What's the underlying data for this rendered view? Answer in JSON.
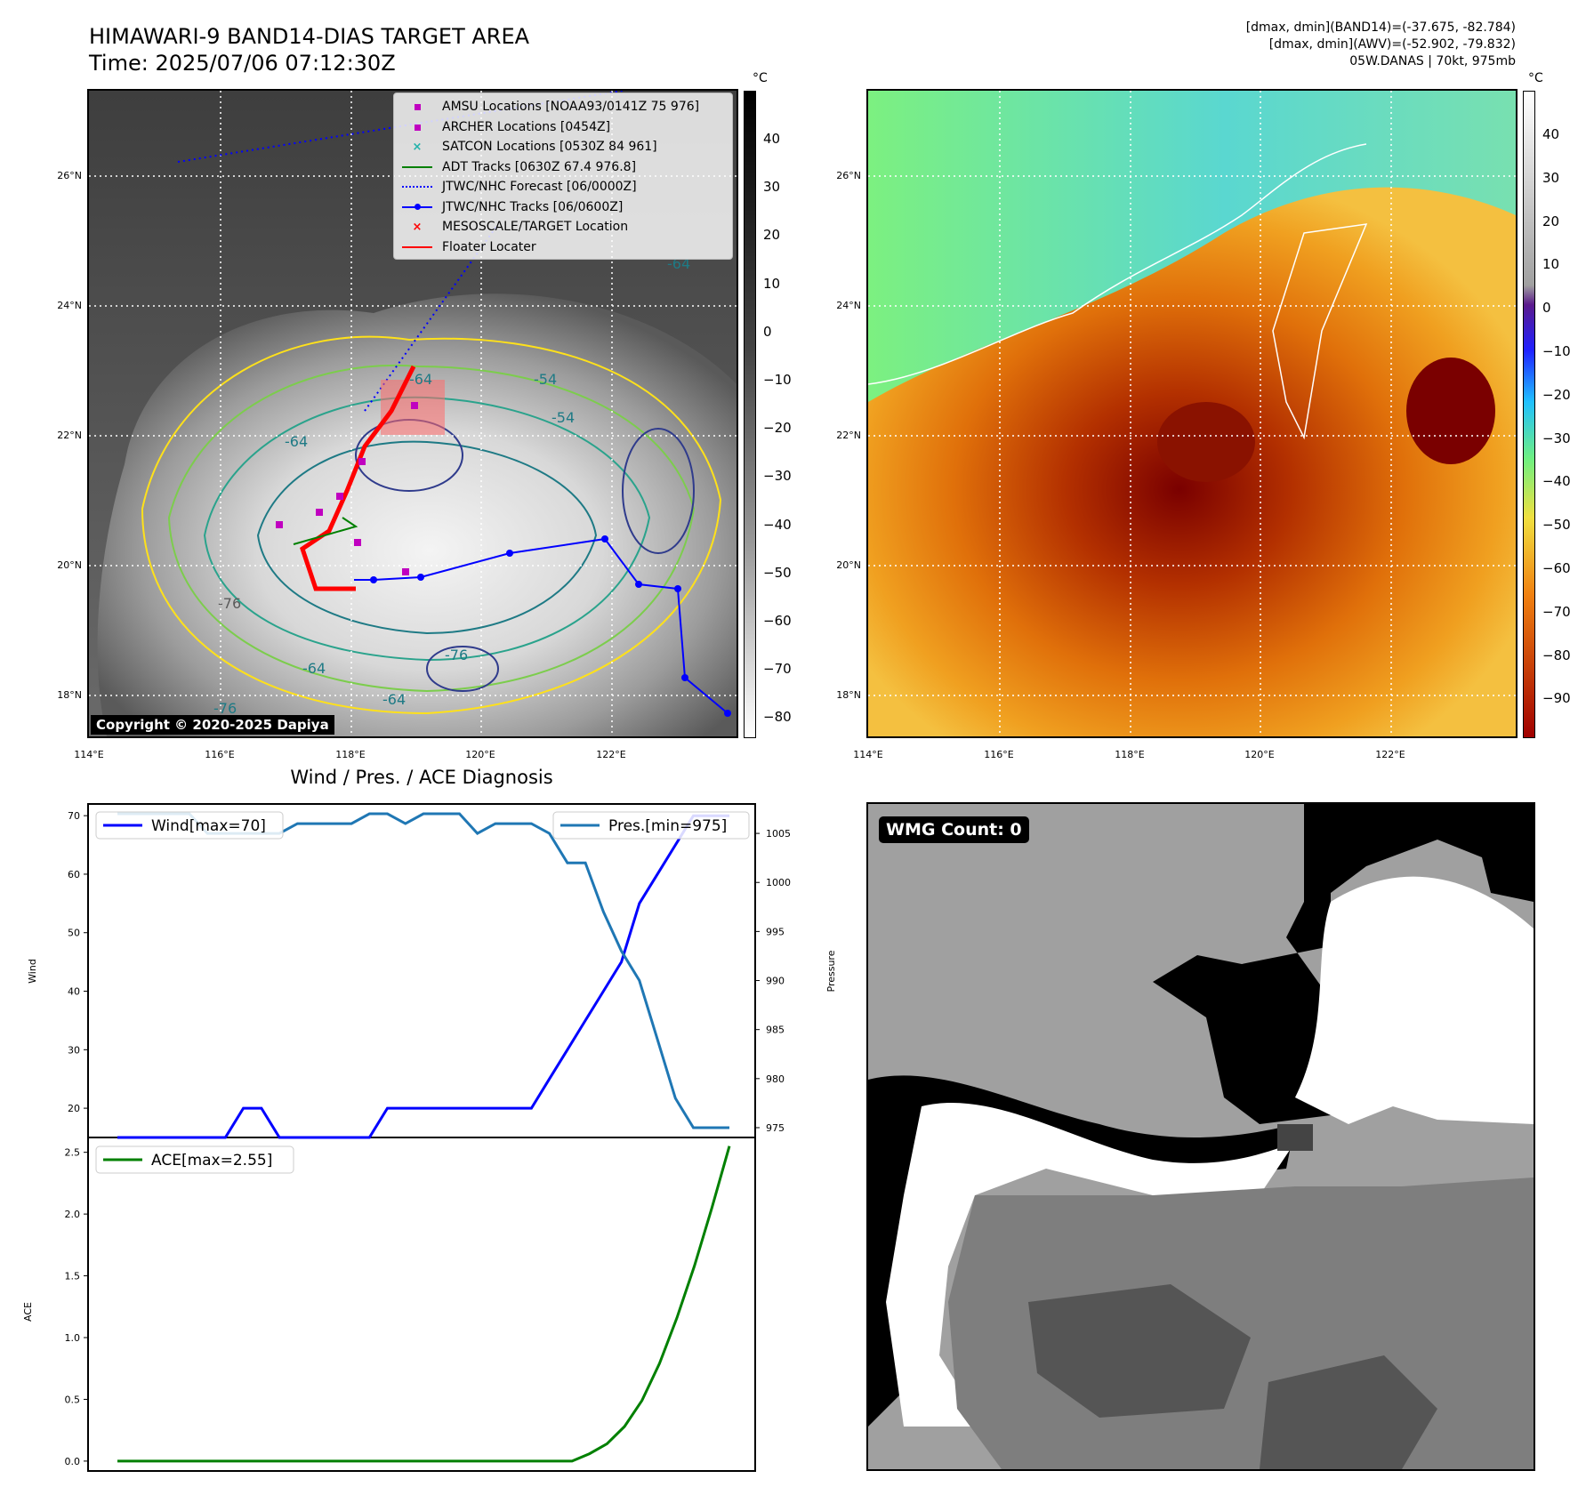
{
  "header": {
    "title": "HIMAWARI-9 BAND14-DIAS TARGET AREA",
    "time": "Time: 2025/07/06 07:12:30Z",
    "info_line1": "[dmax, dmin](BAND14)=(-37.675, -82.784)",
    "info_line2": "[dmax, dmin](AWV)=(-52.902, -79.832)",
    "info_line3": "05W.DANAS | 70kt, 975mb"
  },
  "map": {
    "lon_ticks": [
      "114°E",
      "116°E",
      "118°E",
      "120°E",
      "122°E"
    ],
    "lat_ticks": [
      "26°N",
      "24°N",
      "22°N",
      "20°N",
      "18°N"
    ],
    "copyright": "Copyright © 2020-2025 Dapiya",
    "legend": [
      {
        "label": "AMSU Locations [NOAA93/0141Z 75 976]",
        "color": "#c000c0",
        "marker": "square"
      },
      {
        "label": "ARCHER Locations [0454Z]",
        "color": "#c000c0",
        "marker": "square"
      },
      {
        "label": "SATCON Locations [0530Z 84 961]",
        "color": "#20b2aa",
        "marker": "x"
      },
      {
        "label": "ADT Tracks [0630Z 67.4 976.8]",
        "color": "#008000",
        "marker": "line"
      },
      {
        "label": "JTWC/NHC Forecast [06/0000Z]",
        "color": "#0000ff",
        "marker": "dotted"
      },
      {
        "label": "JTWC/NHC Tracks [06/0600Z]",
        "color": "#0000ff",
        "marker": "line-dot"
      },
      {
        "label": "MESOSCALE/TARGET Location",
        "color": "#ff0000",
        "marker": "x"
      },
      {
        "label": "Floater Locater",
        "color": "#ff0000",
        "marker": "line"
      }
    ],
    "gray_cbar": {
      "unit": "°C",
      "ticks": [
        "40",
        "30",
        "20",
        "10",
        "0",
        "−10",
        "−20",
        "−30",
        "−40",
        "−50",
        "−60",
        "−70",
        "−80"
      ]
    },
    "color_cbar": {
      "unit": "°C",
      "ticks": [
        "40",
        "30",
        "20",
        "10",
        "0",
        "−10",
        "−20",
        "−30",
        "−40",
        "−50",
        "−60",
        "−70",
        "−80",
        "−90"
      ]
    },
    "contour_labels": [
      "-64",
      "-76",
      "-54",
      "-64",
      "-76",
      "-64",
      "-54",
      "-64",
      "-76",
      "-64"
    ]
  },
  "chart_data": [
    {
      "type": "line",
      "title": "Wind / Pres. / ACE Diagnosis",
      "ylabel": "Wind",
      "y2label": "Pressure",
      "ylim": [
        15,
        72
      ],
      "y2lim": [
        974,
        1008
      ],
      "yticks": [
        20,
        30,
        40,
        50,
        60,
        70
      ],
      "y2ticks": [
        975,
        980,
        985,
        990,
        995,
        1000,
        1005
      ],
      "series": [
        {
          "name": "Wind[max=70]",
          "color": "#0000ff",
          "axis": "left",
          "values": [
            15,
            15,
            15,
            15,
            15,
            15,
            15,
            20,
            20,
            15,
            15,
            15,
            15,
            15,
            15,
            20,
            20,
            20,
            20,
            20,
            20,
            20,
            20,
            20,
            25,
            30,
            35,
            40,
            45,
            55,
            60,
            65,
            70,
            70,
            70
          ]
        },
        {
          "name": "Pres.[min=975]",
          "color": "#1f77b4",
          "axis": "right",
          "values": [
            1007,
            1007,
            1007,
            1007,
            1007,
            1005,
            1005,
            1005,
            1005,
            1005,
            1006,
            1006,
            1006,
            1006,
            1007,
            1007,
            1006,
            1007,
            1007,
            1007,
            1005,
            1006,
            1006,
            1006,
            1005,
            1002,
            1002,
            997,
            993,
            990,
            984,
            978,
            975,
            975,
            975
          ]
        }
      ]
    },
    {
      "type": "line",
      "ylabel": "ACE",
      "ylim": [
        -0.08,
        2.62
      ],
      "yticks": [
        0.0,
        0.5,
        1.0,
        1.5,
        2.0,
        2.5
      ],
      "series": [
        {
          "name": "ACE[max=2.55]",
          "color": "#008000",
          "values": [
            0,
            0,
            0,
            0,
            0,
            0,
            0,
            0,
            0,
            0,
            0,
            0,
            0,
            0,
            0,
            0,
            0,
            0,
            0,
            0,
            0,
            0,
            0,
            0,
            0,
            0,
            0,
            0.06,
            0.14,
            0.28,
            0.49,
            0.79,
            1.16,
            1.58,
            2.05,
            2.55
          ]
        }
      ]
    }
  ],
  "wmg": {
    "label": "WMG Count: 0"
  }
}
